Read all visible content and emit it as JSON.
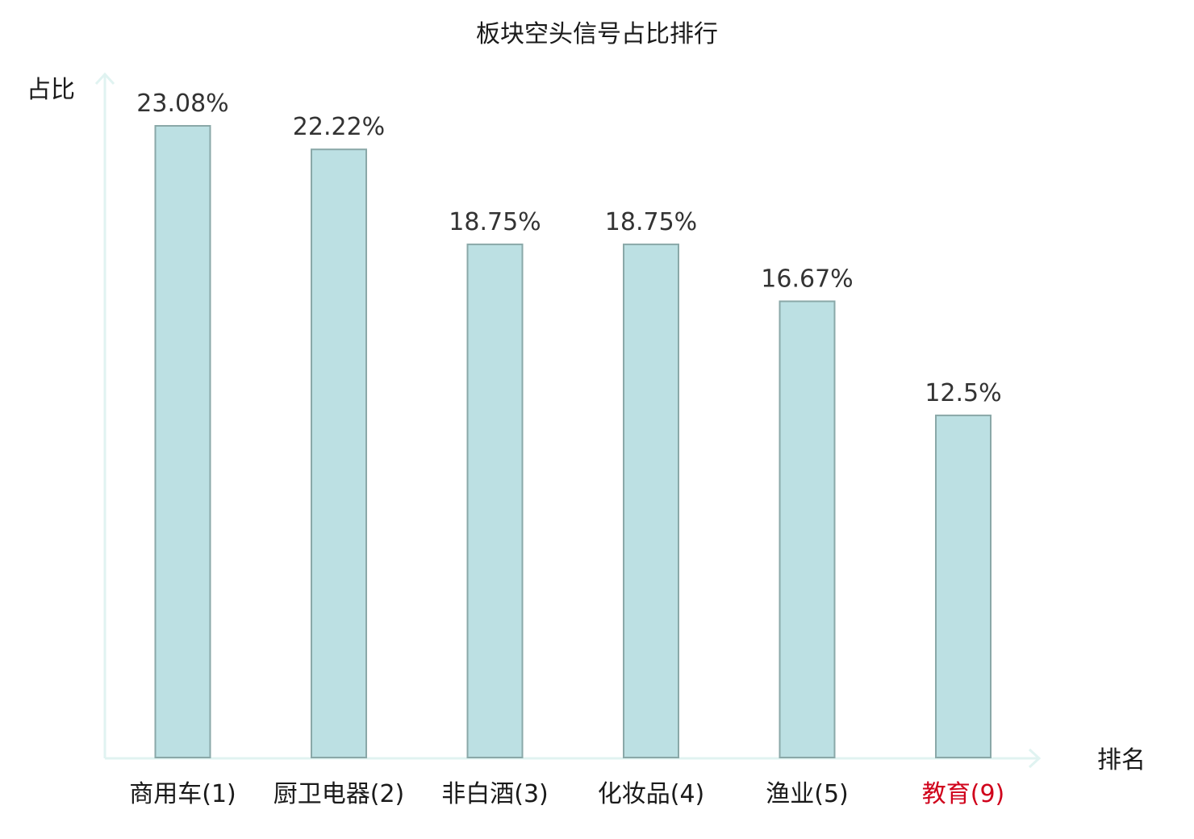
{
  "chart_data": {
    "type": "bar",
    "title": "板块空头信号占比排行",
    "xlabel": "排名",
    "ylabel": "占比",
    "categories": [
      "商用车(1)",
      "厨卫电器(2)",
      "非白酒(3)",
      "化妆品(4)",
      "渔业(5)",
      "教育(9)"
    ],
    "values": [
      23.08,
      22.22,
      18.75,
      18.75,
      16.67,
      12.5
    ],
    "value_labels": [
      "23.08%",
      "22.22%",
      "18.75%",
      "18.75%",
      "16.67%",
      "12.5%"
    ],
    "highlight_index": 5,
    "ylim": [
      0,
      25
    ],
    "grid": false,
    "legend": "none"
  },
  "colors": {
    "bar_fill": "#bce0e3",
    "bar_stroke": "#8aa8a8",
    "axis": "#e0f3f1",
    "highlight_label": "#d0021b"
  }
}
